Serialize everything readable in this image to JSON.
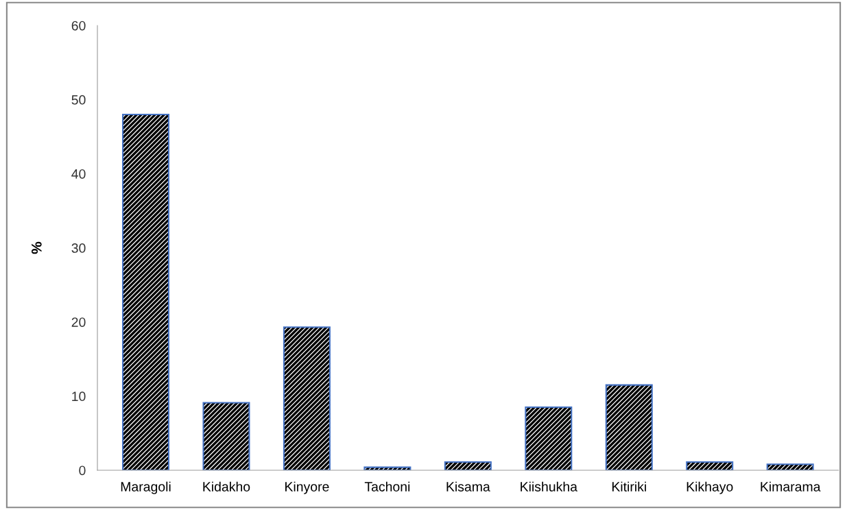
{
  "chart_data": {
    "type": "bar",
    "ylabel": "%",
    "categories": [
      "Maragoli",
      "Kidakho",
      "Kinyore",
      "Tachoni",
      "Kisama",
      "Kiishukha",
      "Kitiriki",
      "Kikhayo",
      "Kimarama"
    ],
    "values": [
      48,
      9.1,
      19.3,
      0.4,
      1.1,
      8.5,
      11.5,
      1.1,
      0.8
    ],
    "color": "#4472c4",
    "ylim": [
      0,
      60
    ],
    "yticks": [
      0,
      10,
      20,
      30,
      40,
      50,
      60
    ],
    "grid": false,
    "legend": false
  }
}
